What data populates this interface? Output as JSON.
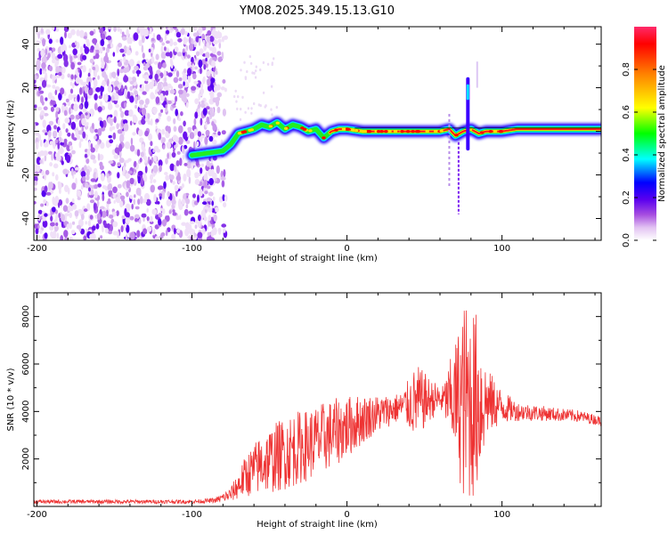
{
  "title": "YM08.2025.349.15.13.G10",
  "chart_data": [
    {
      "type": "heatmap",
      "title": "YM08.2025.349.15.13.G10",
      "xlabel": "Height of straight line (km)",
      "ylabel": "Frequency (Hz)",
      "xlim": [
        -202,
        164
      ],
      "ylim": [
        -50,
        48
      ],
      "xticks": [
        -200,
        -100,
        0,
        100
      ],
      "yticks": [
        -40,
        -20,
        0,
        20,
        40
      ],
      "colorbar": {
        "label": "Normalized spectral amplitude",
        "range": [
          0,
          1
        ],
        "ticks": [
          "0.0",
          "0.2",
          "0.4",
          "0.6",
          "0.8"
        ],
        "colors": [
          "#ffffff",
          "#e2c2f2",
          "#a64de0",
          "#5b00ef",
          "#0000ff",
          "#00ffff",
          "#00ff00",
          "#ffff00",
          "#ff8000",
          "#ff0000"
        ]
      },
      "ridge": {
        "x": [
          -100,
          -90,
          -80,
          -75,
          -70,
          -65,
          -60,
          -55,
          -50,
          -45,
          -40,
          -35,
          -30,
          -25,
          -20,
          -15,
          -10,
          -5,
          0,
          10,
          20,
          30,
          40,
          50,
          60,
          66,
          70,
          75,
          80,
          85,
          90,
          100,
          110,
          130,
          150,
          164
        ],
        "y": [
          -11,
          -10,
          -9,
          -6,
          -1,
          0,
          1,
          3,
          2,
          4,
          1,
          3,
          2,
          0,
          1,
          -3,
          0,
          1,
          1,
          0,
          0,
          0,
          0,
          0,
          0,
          1,
          -2,
          0,
          1,
          -1,
          0,
          0,
          1,
          1,
          1,
          1
        ]
      },
      "noise_region_km": [
        -202,
        -78
      ]
    },
    {
      "type": "line",
      "xlabel": "Height of straight line (km)",
      "ylabel": "SNR (10 * v/v)",
      "xlim": [
        -202,
        164
      ],
      "ylim": [
        0,
        9000
      ],
      "xticks": [
        -200,
        -100,
        0,
        100
      ],
      "yticks": [
        2000,
        4000,
        6000,
        8000
      ],
      "color": "#ee3333",
      "envelope": {
        "x": [
          -202,
          -100,
          -85,
          -75,
          -65,
          -55,
          -45,
          -35,
          -25,
          -15,
          -5,
          5,
          15,
          25,
          35,
          45,
          55,
          62,
          70,
          75,
          80,
          85,
          90,
          100,
          110,
          130,
          150,
          164
        ],
        "mean": [
          200,
          200,
          250,
          500,
          1300,
          1800,
          2100,
          2400,
          2600,
          2900,
          3200,
          3500,
          3800,
          4000,
          4200,
          4400,
          4500,
          4500,
          4500,
          4400,
          4400,
          4400,
          4400,
          4200,
          4000,
          3900,
          3800,
          3600
        ],
        "amp": [
          80,
          80,
          100,
          300,
          900,
          1300,
          1500,
          1600,
          1500,
          1500,
          1400,
          1200,
          900,
          700,
          600,
          1600,
          800,
          600,
          2500,
          4200,
          4300,
          3600,
          1500,
          700,
          400,
          300,
          250,
          200
        ]
      }
    }
  ]
}
